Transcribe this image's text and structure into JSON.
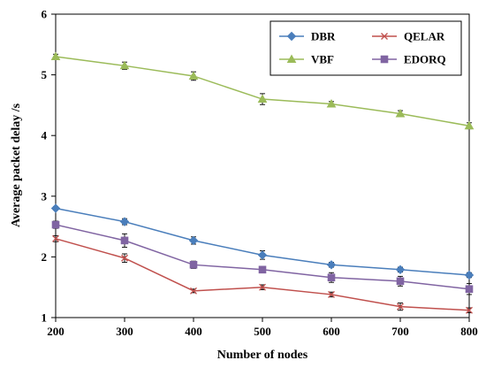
{
  "chart_data": {
    "type": "line",
    "title": "",
    "xlabel": "Number of nodes",
    "ylabel": "Average packet delay /s",
    "x": [
      200,
      300,
      400,
      500,
      600,
      700,
      800
    ],
    "xlim": [
      200,
      800
    ],
    "ylim": [
      1,
      6
    ],
    "xticks": [
      "200",
      "300",
      "400",
      "500",
      "600",
      "700",
      "800"
    ],
    "yticks": [
      "1",
      "2",
      "3",
      "4",
      "5",
      "6"
    ],
    "grid": false,
    "legend_position": "top-right",
    "series": [
      {
        "name": "DBR",
        "color": "#4a7ebb",
        "marker": "diamond",
        "values": [
          2.8,
          2.58,
          2.27,
          2.03,
          1.87,
          1.79,
          1.7
        ],
        "error": [
          0.03,
          0.05,
          0.06,
          0.07,
          0.04,
          0.04,
          0.04
        ]
      },
      {
        "name": "QELAR",
        "color": "#c0504d",
        "marker": "x",
        "values": [
          2.3,
          1.98,
          1.44,
          1.5,
          1.38,
          1.18,
          1.12
        ],
        "error": [
          0.05,
          0.07,
          0.03,
          0.04,
          0.04,
          0.06,
          0.04
        ]
      },
      {
        "name": "VBF",
        "color": "#9bbb59",
        "marker": "triangle",
        "values": [
          5.3,
          5.15,
          4.98,
          4.6,
          4.52,
          4.36,
          4.16
        ],
        "error": [
          0.04,
          0.06,
          0.07,
          0.09,
          0.04,
          0.05,
          0.05
        ]
      },
      {
        "name": "EDORQ",
        "color": "#8064a2",
        "marker": "square",
        "values": [
          2.53,
          2.27,
          1.87,
          1.79,
          1.66,
          1.6,
          1.47
        ],
        "error": [
          0.06,
          0.11,
          0.06,
          0.04,
          0.08,
          0.08,
          0.09
        ]
      }
    ]
  }
}
